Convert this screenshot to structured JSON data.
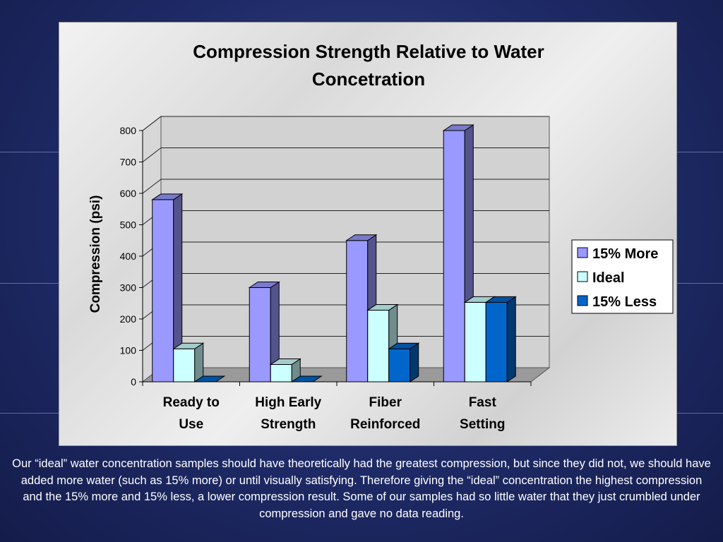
{
  "slide": {
    "caption": "Our “ideal” water concentration samples should have theoretically had the greatest compression, but since they did not, we should have added more water (such as 15% more) or until visually satisfying. Therefore giving the “ideal” concentration the highest compression and the 15% more and 15% less, a lower compression result. Some of our samples had so little water that they just crumbled under compression and gave no data reading."
  },
  "colors": {
    "background": "#1e2a66",
    "series_more": "#9999ff",
    "series_ideal": "#ccffff",
    "series_less": "#0066cc"
  },
  "chart_data": {
    "type": "bar",
    "title": "Compression Strength Relative to Water Concetration",
    "title_lines": [
      "Compression Strength Relative to Water",
      "Concetration"
    ],
    "xlabel": "",
    "ylabel": "Compression (psi)",
    "categories": [
      "Ready to Use",
      "High Early Strength",
      "Fiber Reinforced",
      "Fast Setting"
    ],
    "category_lines": [
      [
        "Ready to",
        "Use"
      ],
      [
        "High Early",
        "Strength"
      ],
      [
        "Fiber",
        "Reinforced"
      ],
      [
        "Fast",
        "Setting"
      ]
    ],
    "series": [
      {
        "name": "15% More",
        "values": [
          580,
          300,
          450,
          800
        ],
        "color": "#9999ff"
      },
      {
        "name": "Ideal",
        "values": [
          105,
          55,
          228,
          253
        ],
        "color": "#ccffff"
      },
      {
        "name": "15% Less",
        "values": [
          0,
          0,
          105,
          253
        ],
        "color": "#0066cc"
      }
    ],
    "ylim": [
      0,
      800
    ],
    "yticks": [
      0,
      100,
      200,
      300,
      400,
      500,
      600,
      700,
      800
    ],
    "grid": true,
    "three_d": true,
    "legend": "right"
  }
}
